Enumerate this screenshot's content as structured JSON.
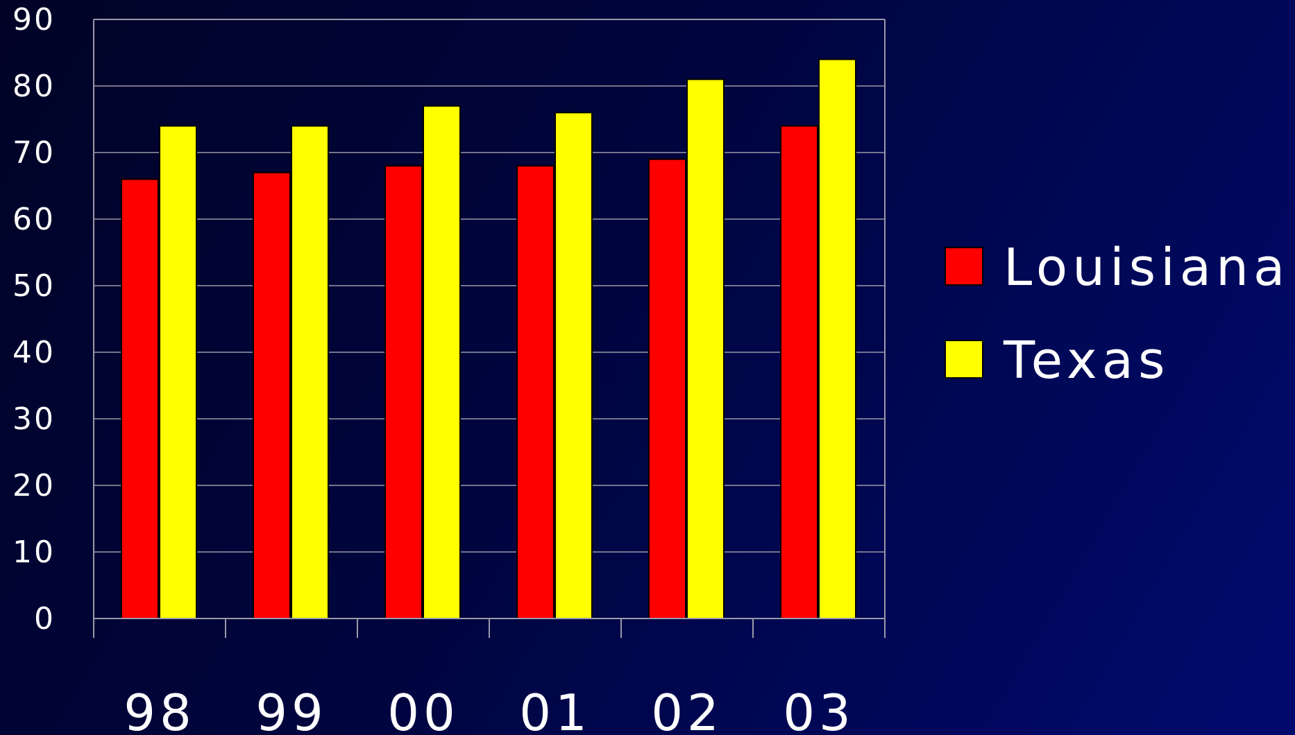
{
  "chart_data": {
    "type": "bar",
    "categories": [
      "98",
      "99",
      "00",
      "01",
      "02",
      "03"
    ],
    "series": [
      {
        "name": "Louisiana",
        "color": "#ff0000",
        "values": [
          66,
          67,
          68,
          68,
          69,
          74
        ]
      },
      {
        "name": "Texas",
        "color": "#ffff00",
        "values": [
          74,
          74,
          77,
          76,
          81,
          84
        ]
      }
    ],
    "ylim": [
      0,
      90
    ],
    "yticks": [
      "0",
      "10",
      "20",
      "30",
      "40",
      "50",
      "60",
      "70",
      "80",
      "90"
    ],
    "grid": true,
    "legend_position": "right",
    "title": "",
    "xlabel": "",
    "ylabel": ""
  }
}
